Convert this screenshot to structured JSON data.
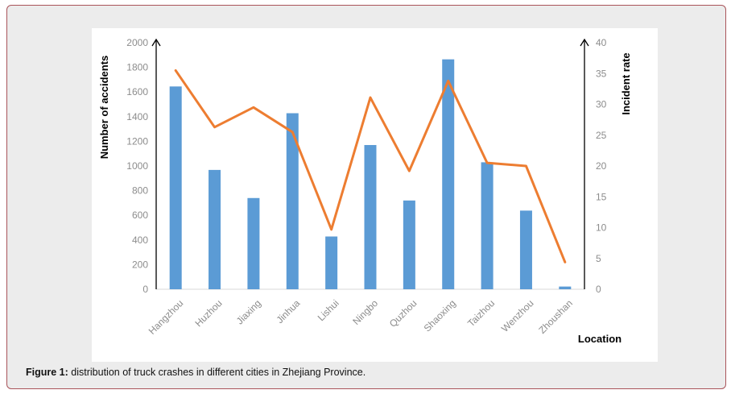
{
  "caption": {
    "label": "Figure 1:",
    "text": "distribution of truck crashes in different cities in Zhejiang Province."
  },
  "chart_data": {
    "type": "bar",
    "categories": [
      "Hangzhou",
      "Huzhou",
      "Jiaxing",
      "Jinhua",
      "Lishui",
      "Ningbo",
      "Quzhou",
      "Shaoxing",
      "Taizhou",
      "Wenzhou",
      "Zhoushan"
    ],
    "series": [
      {
        "type": "bar",
        "axis": "left",
        "color": "#5b9bd5",
        "values": [
          1645,
          968,
          740,
          1428,
          428,
          1170,
          720,
          1865,
          1030,
          638,
          22
        ]
      },
      {
        "type": "line",
        "axis": "right",
        "color": "#ed7d31",
        "values": [
          35.5,
          26.3,
          29.5,
          25.5,
          9.7,
          31.1,
          19.2,
          33.8,
          20.5,
          20.0,
          4.4
        ]
      }
    ],
    "xlabel": "Location",
    "ylabel": "Number of accidents",
    "y2label": "Incident rate",
    "ylim": [
      0,
      2000
    ],
    "y2lim": [
      0,
      40
    ],
    "yticks": [
      0,
      200,
      400,
      600,
      800,
      1000,
      1200,
      1400,
      1600,
      1800,
      2000
    ],
    "y2ticks": [
      0,
      5,
      10,
      15,
      20,
      25,
      30,
      35,
      40
    ],
    "grid": false,
    "legend": "none"
  }
}
